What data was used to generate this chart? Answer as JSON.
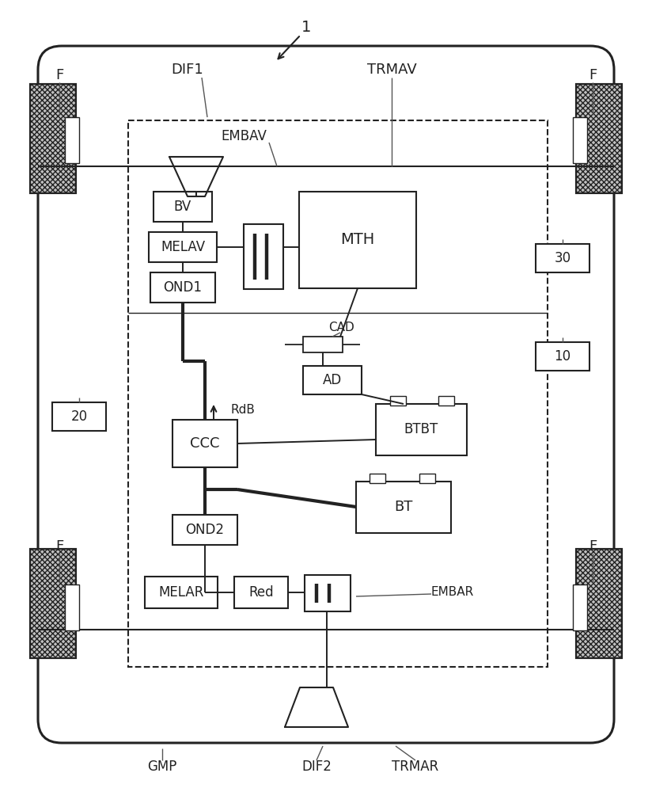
{
  "bg_color": "#ffffff",
  "line_color": "#222222",
  "fig_width": 8.24,
  "fig_height": 10.0,
  "labels": {
    "title_num": "1",
    "DIF1": "DIF1",
    "TRMAV": "TRMAV",
    "F": "F",
    "EMBAV": "EMBAV",
    "BV": "BV",
    "MELAV": "MELAV",
    "OND1": "OND1",
    "MTH": "MTH",
    "CAD": "CAD",
    "AD": "AD",
    "BTBT": "BTBT",
    "CCC": "CCC",
    "RdB": "RdB",
    "BT": "BT",
    "OND2": "OND2",
    "MELAR": "MELAR",
    "Red": "Red",
    "EMBAR": "EMBAR",
    "GMP": "GMP",
    "DIF2": "DIF2",
    "TRMAR": "TRMAR",
    "num_30": "30",
    "num_10": "10",
    "num_20": "20"
  }
}
